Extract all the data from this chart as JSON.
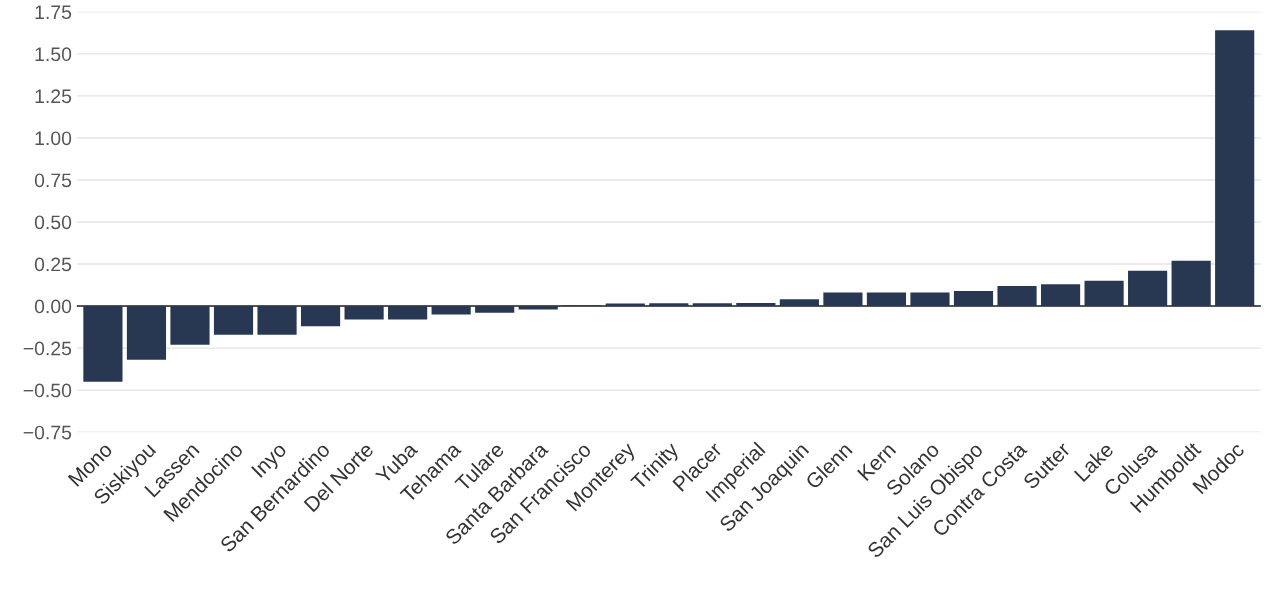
{
  "chart_data": {
    "type": "bar",
    "categories": [
      "Mono",
      "Siskiyou",
      "Lassen",
      "Mendocino",
      "Inyo",
      "San Bernardino",
      "Del Norte",
      "Yuba",
      "Tehama",
      "Tulare",
      "Santa Barbara",
      "San Francisco",
      "Monterey",
      "Trinity",
      "Placer",
      "Imperial",
      "San Joaquin",
      "Glenn",
      "Kern",
      "Solano",
      "San Luis Obispo",
      "Contra Costa",
      "Sutter",
      "Lake",
      "Colusa",
      "Humboldt",
      "Modoc"
    ],
    "values": [
      -0.45,
      -0.32,
      -0.23,
      -0.17,
      -0.17,
      -0.12,
      -0.08,
      -0.08,
      -0.05,
      -0.04,
      -0.02,
      0.005,
      0.015,
      0.016,
      0.016,
      0.018,
      0.04,
      0.08,
      0.08,
      0.08,
      0.09,
      0.12,
      0.13,
      0.15,
      0.21,
      0.27,
      1.64
    ],
    "color": "#283852",
    "ylim": [
      -0.75,
      1.75
    ],
    "yticks": [
      {
        "value": -0.75,
        "label": "−0.75"
      },
      {
        "value": -0.5,
        "label": "−0.50"
      },
      {
        "value": -0.25,
        "label": "−0.25"
      },
      {
        "value": 0,
        "label": "0.00"
      },
      {
        "value": 0.25,
        "label": "0.25"
      },
      {
        "value": 0.5,
        "label": "0.50"
      },
      {
        "value": 0.75,
        "label": "0.75"
      },
      {
        "value": 1.0,
        "label": "1.00"
      },
      {
        "value": 1.25,
        "label": "1.25"
      },
      {
        "value": 1.5,
        "label": "1.50"
      },
      {
        "value": 1.75,
        "label": "1.75"
      }
    ],
    "grid": "y"
  }
}
